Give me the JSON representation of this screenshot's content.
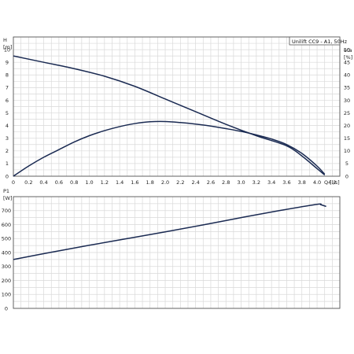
{
  "chart_data": [
    {
      "type": "line",
      "panel": "top",
      "title": "Unilift CC9 - A1, 50Hz",
      "xlabel": "Q [l/s]",
      "ylabel": "H [m]",
      "ylabel2": "eta [%]",
      "xlim": [
        0,
        4.3
      ],
      "xticks": [
        0,
        0.2,
        0.4,
        0.6,
        0.8,
        1.0,
        1.2,
        1.4,
        1.6,
        1.8,
        2.0,
        2.2,
        2.4,
        2.6,
        2.8,
        3.0,
        3.2,
        3.4,
        3.6,
        3.8,
        4.0,
        4.2
      ],
      "xtick_labels": [
        "0",
        "0.2",
        "0.4",
        "0.6",
        "0.8",
        "1.0",
        "1.2",
        "1.4",
        "1.6",
        "1.8",
        "2.0",
        "2.2",
        "2.4",
        "2.6",
        "2.8",
        "3.0",
        "3.2",
        "3.4",
        "3.6",
        "3.8",
        "4.0",
        "4.2"
      ],
      "ylim": [
        0,
        11
      ],
      "yticks": [
        0,
        1,
        2,
        3,
        4,
        5,
        6,
        7,
        8,
        9,
        10
      ],
      "y2lim": [
        0,
        55
      ],
      "y2ticks": [
        0,
        5,
        10,
        15,
        20,
        25,
        30,
        35,
        40,
        45,
        50
      ],
      "grid": true,
      "series": [
        {
          "axis": "left",
          "x": [
            0,
            0.4,
            0.8,
            1.2,
            1.6,
            2.0,
            2.4,
            2.8,
            3.2,
            3.6,
            3.8,
            4.0,
            4.1
          ],
          "y": [
            9.5,
            9.0,
            8.5,
            7.9,
            7.1,
            6.1,
            5.1,
            4.1,
            3.2,
            2.4,
            1.6,
            0.6,
            0.1
          ]
        },
        {
          "axis": "right",
          "x": [
            0,
            0.2,
            0.4,
            0.6,
            0.8,
            1.0,
            1.2,
            1.4,
            1.6,
            1.8,
            2.0,
            2.2,
            2.4,
            2.6,
            2.8,
            3.0,
            3.2,
            3.4,
            3.6,
            3.8,
            4.0,
            4.1
          ],
          "y": [
            0,
            4,
            7.5,
            10.5,
            13.5,
            16,
            18,
            19.6,
            20.8,
            21.5,
            21.6,
            21.2,
            20.6,
            19.8,
            18.8,
            17.7,
            16.3,
            14.7,
            12.5,
            9.0,
            4.0,
            0.8
          ]
        }
      ]
    },
    {
      "type": "line",
      "panel": "bottom",
      "xlabel": "",
      "ylabel": "P1 [W]",
      "xlim": [
        0,
        4.3
      ],
      "ylim": [
        0,
        800
      ],
      "yticks": [
        0,
        100,
        200,
        300,
        400,
        500,
        600,
        700
      ],
      "grid": true,
      "series": [
        {
          "x": [
            0,
            0.5,
            1.0,
            1.5,
            2.0,
            2.5,
            3.0,
            3.5,
            4.0,
            4.05,
            4.12
          ],
          "y": [
            350,
            402,
            452,
            500,
            548,
            598,
            650,
            700,
            745,
            742,
            730
          ]
        }
      ]
    }
  ]
}
